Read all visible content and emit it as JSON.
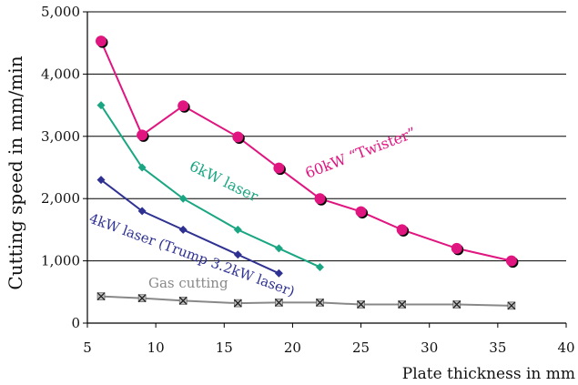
{
  "chart_data": {
    "type": "line",
    "title": "",
    "xlabel": "Plate thickness in mm",
    "ylabel": "Cutting speed in mm/min",
    "xlim": [
      5,
      40
    ],
    "ylim": [
      0,
      5000
    ],
    "xticks": [
      5,
      10,
      15,
      20,
      25,
      30,
      35,
      40
    ],
    "yticks": [
      0,
      1000,
      2000,
      3000,
      4000,
      5000
    ],
    "xtick_labels": [
      "5",
      "10",
      "15",
      "20",
      "25",
      "30",
      "35",
      "40"
    ],
    "ytick_labels": [
      "0",
      "1,000",
      "2,000",
      "3,000",
      "4,000",
      "5,000"
    ],
    "grid": "horizontal",
    "legend": "none (series labeled inline)",
    "series": [
      {
        "name": "60kW “Twister”",
        "color": "#e0157f",
        "marker": "circle",
        "x": [
          6,
          9,
          12,
          16,
          19,
          22,
          25,
          28,
          32,
          36
        ],
        "y": [
          4530,
          3020,
          3490,
          2990,
          2490,
          2000,
          1790,
          1500,
          1200,
          1000
        ]
      },
      {
        "name": "6kW laser",
        "color": "#1aa682",
        "marker": "diamond",
        "x": [
          6,
          9,
          12,
          16,
          19,
          22
        ],
        "y": [
          3500,
          2500,
          2000,
          1500,
          1200,
          900
        ]
      },
      {
        "name": "4kW laser (Trump 3.2kW laser)",
        "color": "#2e3192",
        "marker": "diamond",
        "x": [
          6,
          9,
          12,
          16,
          19
        ],
        "y": [
          2300,
          1800,
          1500,
          1100,
          800
        ]
      },
      {
        "name": "Gas cutting",
        "color": "#888888",
        "marker": "x-square",
        "x": [
          6,
          9,
          12,
          16,
          19,
          22,
          25,
          28,
          32,
          36
        ],
        "y": [
          430,
          400,
          360,
          320,
          330,
          330,
          300,
          300,
          300,
          280
        ]
      }
    ]
  }
}
